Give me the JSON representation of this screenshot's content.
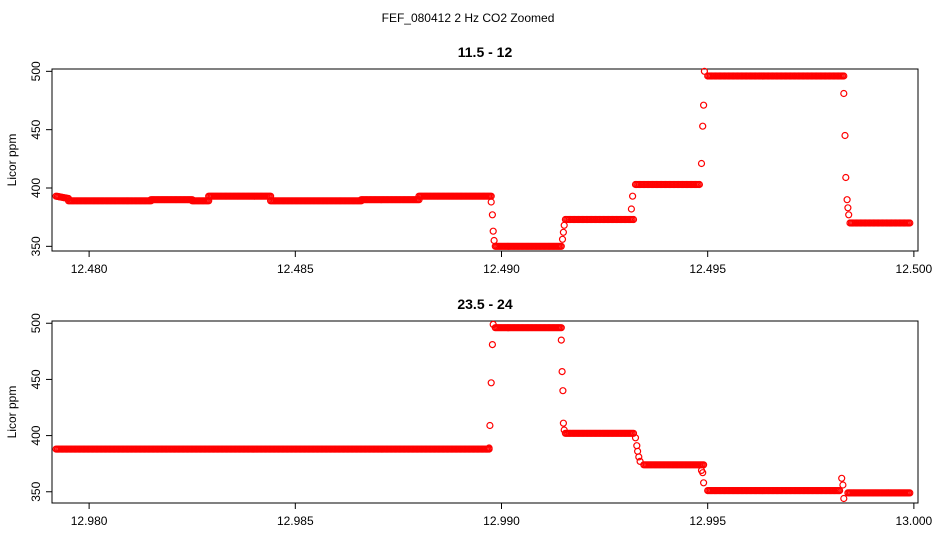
{
  "figure": {
    "title": "FEF_080412  2 Hz CO2 Zoomed"
  },
  "chart_data": [
    {
      "type": "scatter",
      "title": "11.5 - 12",
      "xlabel": "",
      "ylabel": "Licor ppm",
      "xlim": [
        12.4791,
        12.5001
      ],
      "ylim": [
        346,
        502
      ],
      "xticks": [
        12.48,
        12.485,
        12.49,
        12.495,
        12.5
      ],
      "xtick_labels": [
        "12.480",
        "12.485",
        "12.490",
        "12.495",
        "12.500"
      ],
      "yticks": [
        350,
        400,
        450,
        500
      ],
      "ytick_labels": [
        "350",
        "400",
        "450",
        "500"
      ],
      "grid": false,
      "marker": "open-circle",
      "color": "#ff0000",
      "segments": [
        {
          "x": [
            12.4792,
            12.4795
          ],
          "y": [
            393,
            391
          ]
        },
        {
          "x": [
            12.4795,
            12.4815
          ],
          "y": [
            389,
            389
          ]
        },
        {
          "x": [
            12.4815,
            12.4825
          ],
          "y": [
            390,
            390
          ]
        },
        {
          "x": [
            12.4825,
            12.4829
          ],
          "y": [
            389,
            389
          ]
        },
        {
          "x": [
            12.4829,
            12.4844
          ],
          "y": [
            393,
            393
          ]
        },
        {
          "x": [
            12.4844,
            12.4866
          ],
          "y": [
            389,
            389
          ]
        },
        {
          "x": [
            12.4866,
            12.488
          ],
          "y": [
            390,
            390
          ]
        },
        {
          "x": [
            12.488,
            12.48975
          ],
          "y": [
            393,
            393
          ]
        },
        {
          "x": [
            12.48985,
            12.49145
          ],
          "y": [
            350,
            350
          ]
        },
        {
          "x": [
            12.49155,
            12.4932
          ],
          "y": [
            373,
            373
          ]
        },
        {
          "x": [
            12.49325,
            12.4948
          ],
          "y": [
            403,
            403
          ]
        },
        {
          "x": [
            12.495,
            12.4983
          ],
          "y": [
            496,
            496
          ]
        },
        {
          "x": [
            12.49845,
            12.4999
          ],
          "y": [
            370,
            370
          ]
        }
      ],
      "points": [
        {
          "x": 12.48975,
          "y": 388
        },
        {
          "x": 12.48978,
          "y": 377
        },
        {
          "x": 12.4898,
          "y": 363
        },
        {
          "x": 12.48982,
          "y": 355
        },
        {
          "x": 12.49148,
          "y": 356
        },
        {
          "x": 12.4915,
          "y": 362
        },
        {
          "x": 12.49152,
          "y": 368
        },
        {
          "x": 12.49315,
          "y": 382
        },
        {
          "x": 12.49318,
          "y": 393
        },
        {
          "x": 12.49485,
          "y": 421
        },
        {
          "x": 12.49488,
          "y": 453
        },
        {
          "x": 12.4949,
          "y": 471
        },
        {
          "x": 12.49492,
          "y": 500
        },
        {
          "x": 12.4983,
          "y": 481
        },
        {
          "x": 12.49833,
          "y": 445
        },
        {
          "x": 12.49835,
          "y": 409
        },
        {
          "x": 12.49838,
          "y": 390
        },
        {
          "x": 12.4984,
          "y": 383
        },
        {
          "x": 12.49842,
          "y": 377
        }
      ]
    },
    {
      "type": "scatter",
      "title": "23.5 - 24",
      "xlabel": "",
      "ylabel": "Licor ppm",
      "xlim": [
        12.9791,
        13.0001
      ],
      "ylim": [
        340,
        502
      ],
      "xticks": [
        12.98,
        12.985,
        12.99,
        12.995,
        13.0
      ],
      "xtick_labels": [
        "12.980",
        "12.985",
        "12.990",
        "12.995",
        "13.000"
      ],
      "yticks": [
        350,
        400,
        450,
        500
      ],
      "ytick_labels": [
        "350",
        "400",
        "450",
        "500"
      ],
      "grid": false,
      "marker": "open-circle",
      "color": "#ff0000",
      "segments": [
        {
          "x": [
            12.9792,
            12.9897
          ],
          "y": [
            388,
            388
          ]
        },
        {
          "x": [
            12.98985,
            12.99145
          ],
          "y": [
            496,
            496
          ]
        },
        {
          "x": [
            12.99155,
            12.9932
          ],
          "y": [
            402,
            402
          ]
        },
        {
          "x": [
            12.99345,
            12.9949
          ],
          "y": [
            374,
            374
          ]
        },
        {
          "x": [
            12.995,
            12.9982
          ],
          "y": [
            351,
            351
          ]
        },
        {
          "x": [
            12.9984,
            12.9999
          ],
          "y": [
            349,
            349
          ]
        }
      ],
      "points": [
        {
          "x": 12.9897,
          "y": 389
        },
        {
          "x": 12.98972,
          "y": 409
        },
        {
          "x": 12.98975,
          "y": 447
        },
        {
          "x": 12.98978,
          "y": 481
        },
        {
          "x": 12.9898,
          "y": 499
        },
        {
          "x": 12.99145,
          "y": 485
        },
        {
          "x": 12.99147,
          "y": 457
        },
        {
          "x": 12.99149,
          "y": 440
        },
        {
          "x": 12.9915,
          "y": 411
        },
        {
          "x": 12.99152,
          "y": 405
        },
        {
          "x": 12.99325,
          "y": 398
        },
        {
          "x": 12.99328,
          "y": 391
        },
        {
          "x": 12.9933,
          "y": 386
        },
        {
          "x": 12.99333,
          "y": 381
        },
        {
          "x": 12.99336,
          "y": 377
        },
        {
          "x": 12.99485,
          "y": 369
        },
        {
          "x": 12.99488,
          "y": 367
        },
        {
          "x": 12.9949,
          "y": 358
        },
        {
          "x": 12.99825,
          "y": 362
        },
        {
          "x": 12.99828,
          "y": 356
        },
        {
          "x": 12.9983,
          "y": 344
        }
      ]
    }
  ]
}
